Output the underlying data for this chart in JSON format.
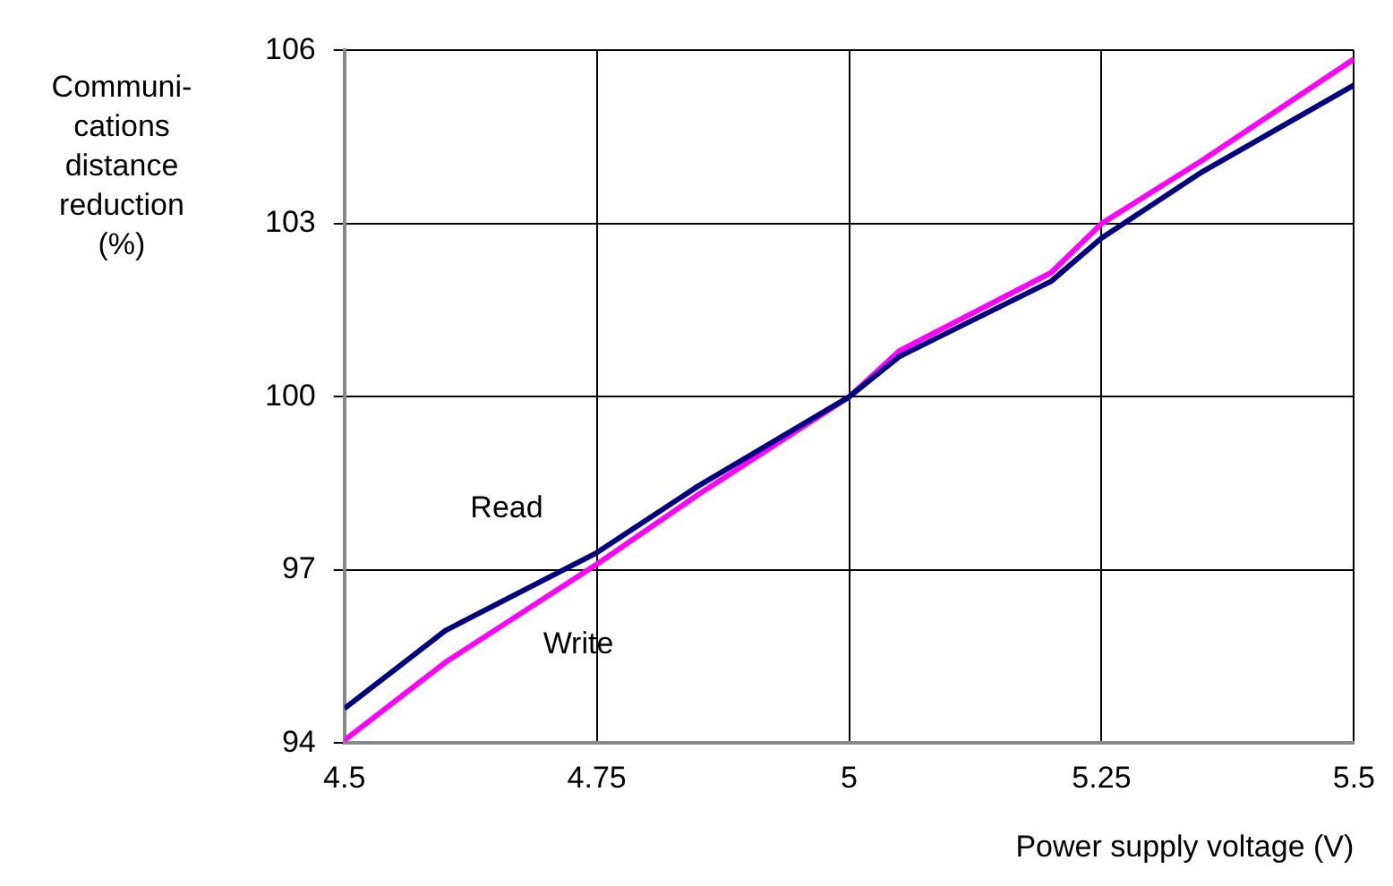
{
  "chart_data": {
    "type": "line",
    "xlabel": "Power supply voltage (V)",
    "ylabel": "Communi-\ncations\ndistance\nreduction\n(%)",
    "series": [
      {
        "name": "Read",
        "color": "#000080",
        "x": [
          4.5,
          4.6,
          4.75,
          4.85,
          5,
          5.05,
          5.2,
          5.25,
          5.35,
          5.5
        ],
        "values": [
          94.6,
          95.95,
          97.3,
          98.45,
          100,
          100.7,
          102.0,
          102.75,
          103.9,
          105.4
        ]
      },
      {
        "name": "Write",
        "color": "#ff00ff",
        "x": [
          4.5,
          4.6,
          4.75,
          4.85,
          5,
          5.05,
          5.2,
          5.25,
          5.35,
          5.5
        ],
        "values": [
          94.05,
          95.4,
          97.1,
          98.3,
          100,
          100.8,
          102.15,
          103.0,
          104.1,
          105.85
        ]
      }
    ],
    "xlim": [
      4.5,
      5.5
    ],
    "xticks": [
      4.5,
      4.75,
      5,
      5.25,
      5.5
    ],
    "ylim": [
      94,
      106
    ],
    "yticks": [
      94,
      97,
      100,
      103,
      106
    ],
    "grid": true,
    "legend": false,
    "marker": "none",
    "line_style": "solid"
  }
}
